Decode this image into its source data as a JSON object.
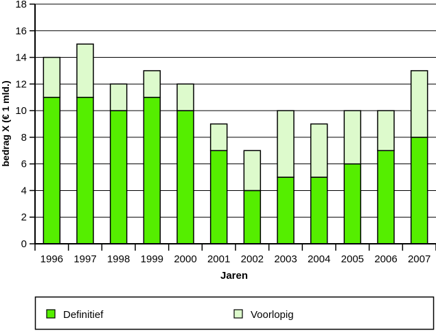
{
  "chart_data": {
    "type": "bar",
    "stacked": true,
    "title": "",
    "xlabel": "Jaren",
    "ylabel": "bedrag X (€ 1 mld.)",
    "ylim": [
      0,
      18
    ],
    "yticks": [
      0,
      2,
      4,
      6,
      8,
      10,
      12,
      14,
      16,
      18
    ],
    "grid": true,
    "legend_placement": "bottom",
    "categories": [
      "1996",
      "1997",
      "1998",
      "1999",
      "2000",
      "2001",
      "2002",
      "2003",
      "2004",
      "2005",
      "2006",
      "2007"
    ],
    "series": [
      {
        "name": "Definitief",
        "color": "#55ee00",
        "values": [
          11,
          11,
          10,
          11,
          10,
          7,
          4,
          5,
          5,
          6,
          7,
          8
        ]
      },
      {
        "name": "Voorlopig",
        "color": "#ddfacc",
        "values": [
          3,
          4,
          2,
          2,
          2,
          2,
          3,
          5,
          4,
          4,
          3,
          5
        ]
      }
    ]
  }
}
